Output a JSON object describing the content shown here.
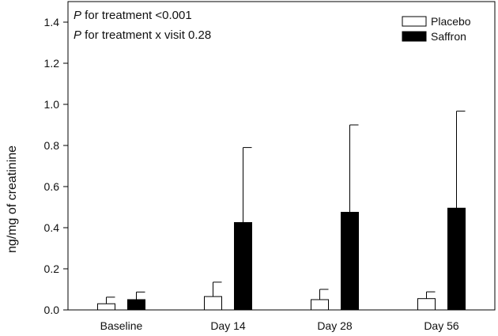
{
  "chart_data": {
    "type": "bar",
    "ylabel": "ng/mg of creatinine",
    "xlabel": "",
    "ylim": [
      0,
      1.5
    ],
    "yticks": [
      "0.0",
      "0.2",
      "0.4",
      "0.6",
      "0.8",
      "1.0",
      "1.2",
      "1.4"
    ],
    "categories": [
      "Baseline",
      "Day 14",
      "Day 28",
      "Day 56"
    ],
    "series": [
      {
        "name": "Placebo",
        "fill": "#ffffff",
        "values": [
          0.03,
          0.065,
          0.05,
          0.055
        ],
        "error": [
          0.032,
          0.07,
          0.05,
          0.033
        ]
      },
      {
        "name": "Saffron",
        "fill": "#000000",
        "values": [
          0.05,
          0.425,
          0.475,
          0.495
        ],
        "error": [
          0.037,
          0.365,
          0.425,
          0.472
        ]
      }
    ],
    "annotations": [
      {
        "italic": "P",
        "text": " for treatment <0.001"
      },
      {
        "italic": "P",
        "text": " for treatment x visit 0.28"
      }
    ],
    "legend_position": "top-right",
    "grid": false
  }
}
